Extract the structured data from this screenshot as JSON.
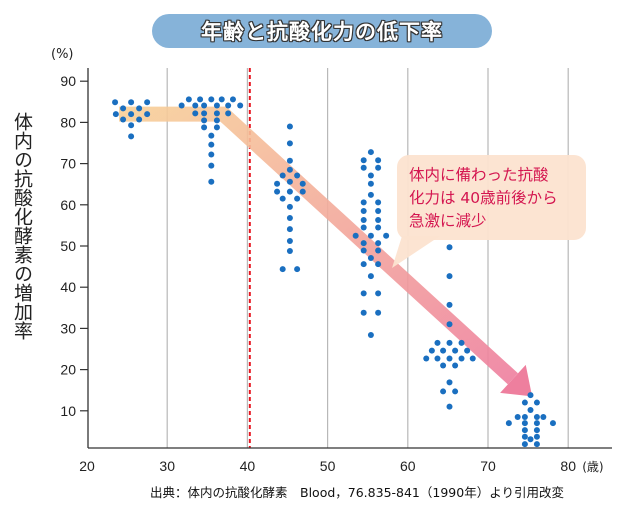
{
  "chart_data": {
    "type": "scatter",
    "title": "年齢と抗酸化力の低下率",
    "ylabel": "体内の抗酸化酵素の増加率",
    "yunit": "(%)",
    "xunit": "(歳)",
    "xlim": [
      20,
      84
    ],
    "ylim": [
      0,
      92
    ],
    "xticks": [
      20,
      30,
      40,
      50,
      60,
      70,
      80
    ],
    "yticks": [
      10,
      20,
      30,
      40,
      50,
      60,
      70,
      80,
      90
    ],
    "grid": "vertical",
    "point_color": "#1a6fc0",
    "reference_line": {
      "x": 40.3,
      "color": "#e8141e",
      "style": "dashed"
    },
    "trend_arrow": {
      "points": [
        [
          24,
          82
        ],
        [
          37,
          82
        ],
        [
          75.5,
          13.5
        ]
      ],
      "color_start": "#f7cf98",
      "color_end": "#ee7f9e"
    },
    "callout": {
      "text": "体内に備わった抗酸\n化力は 40歳前後から\n急激に減少",
      "fill": "#fce3d0",
      "text_color": "#d41650"
    },
    "points": [
      [
        23.5,
        84.9
      ],
      [
        25.5,
        84.9
      ],
      [
        27.5,
        84.9
      ],
      [
        24.5,
        83.4
      ],
      [
        26.5,
        83.4
      ],
      [
        23.6,
        82
      ],
      [
        25.5,
        82
      ],
      [
        27.5,
        82
      ],
      [
        24.5,
        80.7
      ],
      [
        26.5,
        80.7
      ],
      [
        25.5,
        79.3
      ],
      [
        25.5,
        76.6
      ],
      [
        32.7,
        85.6
      ],
      [
        34.1,
        85.6
      ],
      [
        35.5,
        85.6
      ],
      [
        36.8,
        85.6
      ],
      [
        38.2,
        85.6
      ],
      [
        31.8,
        84.1
      ],
      [
        33.5,
        84.1
      ],
      [
        34.6,
        84.1
      ],
      [
        36.2,
        84.1
      ],
      [
        37.6,
        84.1
      ],
      [
        39.1,
        84.1
      ],
      [
        33.5,
        82.2
      ],
      [
        34.6,
        82.2
      ],
      [
        36.2,
        82.2
      ],
      [
        37.6,
        82.2
      ],
      [
        34.6,
        80.5
      ],
      [
        36.2,
        80.5
      ],
      [
        34.6,
        78.8
      ],
      [
        36.2,
        78.8
      ],
      [
        35.5,
        76.8
      ],
      [
        35.5,
        74.6
      ],
      [
        35.5,
        72.2
      ],
      [
        35.5,
        69.5
      ],
      [
        35.5,
        65.6
      ],
      [
        45.3,
        79
      ],
      [
        45.3,
        74.9
      ],
      [
        45.3,
        70.7
      ],
      [
        45.3,
        68.5
      ],
      [
        44.4,
        67.1
      ],
      [
        46.2,
        67.1
      ],
      [
        43.7,
        65.1
      ],
      [
        45.3,
        65.6
      ],
      [
        46.9,
        65.1
      ],
      [
        43.7,
        63.2
      ],
      [
        45.3,
        63.2
      ],
      [
        46.9,
        63.2
      ],
      [
        44.4,
        61.5
      ],
      [
        46.2,
        61.5
      ],
      [
        45.3,
        59.5
      ],
      [
        45.3,
        56.8
      ],
      [
        45.3,
        54.1
      ],
      [
        45.3,
        51.2
      ],
      [
        45.3,
        48.8
      ],
      [
        44.4,
        44.4
      ],
      [
        46.2,
        44.4
      ],
      [
        55.4,
        72.8
      ],
      [
        54.5,
        70.8
      ],
      [
        56.3,
        70.8
      ],
      [
        54.5,
        69
      ],
      [
        56.3,
        69
      ],
      [
        55.4,
        67.1
      ],
      [
        55.4,
        65.1
      ],
      [
        55.4,
        62.4
      ],
      [
        54.5,
        60.6
      ],
      [
        56.3,
        60.6
      ],
      [
        54.5,
        58.5
      ],
      [
        56.3,
        58.5
      ],
      [
        54.5,
        56.3
      ],
      [
        56.3,
        56.3
      ],
      [
        54.5,
        54.5
      ],
      [
        56.3,
        54.5
      ],
      [
        53.5,
        52.5
      ],
      [
        55.4,
        52.5
      ],
      [
        57.3,
        52.5
      ],
      [
        54.5,
        50.7
      ],
      [
        56.3,
        50.7
      ],
      [
        54.5,
        48.9
      ],
      [
        56.3,
        48.9
      ],
      [
        55.4,
        47.1
      ],
      [
        54.5,
        45.6
      ],
      [
        56.3,
        45.6
      ],
      [
        55.4,
        42.7
      ],
      [
        54.5,
        38.5
      ],
      [
        56.3,
        38.5
      ],
      [
        54.5,
        33.8
      ],
      [
        56.3,
        33.8
      ],
      [
        55.4,
        28.4
      ],
      [
        65.2,
        49.7
      ],
      [
        65.2,
        42.7
      ],
      [
        65.2,
        35.7
      ],
      [
        65.2,
        31.0
      ],
      [
        63.7,
        26.5
      ],
      [
        65.2,
        26.5
      ],
      [
        66.7,
        26.5
      ],
      [
        63.0,
        24.6
      ],
      [
        64.4,
        24.6
      ],
      [
        65.9,
        24.6
      ],
      [
        67.4,
        24.6
      ],
      [
        62.3,
        22.7
      ],
      [
        63.7,
        22.7
      ],
      [
        65.2,
        22.7
      ],
      [
        66.7,
        22.7
      ],
      [
        68.1,
        22.7
      ],
      [
        64.4,
        21.0
      ],
      [
        65.9,
        21.0
      ],
      [
        65.2,
        16.9
      ],
      [
        64.4,
        14.7
      ],
      [
        65.9,
        14.7
      ],
      [
        65.2,
        11.0
      ],
      [
        75.3,
        13.8
      ],
      [
        74.6,
        12
      ],
      [
        76.1,
        12
      ],
      [
        75.3,
        10.2
      ],
      [
        73.7,
        8.5
      ],
      [
        74.6,
        8.5
      ],
      [
        76.1,
        8.5
      ],
      [
        76.9,
        8.5
      ],
      [
        72.6,
        7.0
      ],
      [
        74.6,
        7.0
      ],
      [
        76.1,
        7.0
      ],
      [
        78.1,
        7.0
      ],
      [
        74.6,
        5.3
      ],
      [
        76.1,
        5.3
      ],
      [
        74.6,
        3.7
      ],
      [
        76.1,
        3.7
      ],
      [
        75.3,
        3.1
      ],
      [
        74.6,
        1.9
      ],
      [
        76.1,
        1.9
      ]
    ]
  },
  "source": "出典：体内の抗酸化酵素　Blood，76.835-841（1990年）より引用改変"
}
